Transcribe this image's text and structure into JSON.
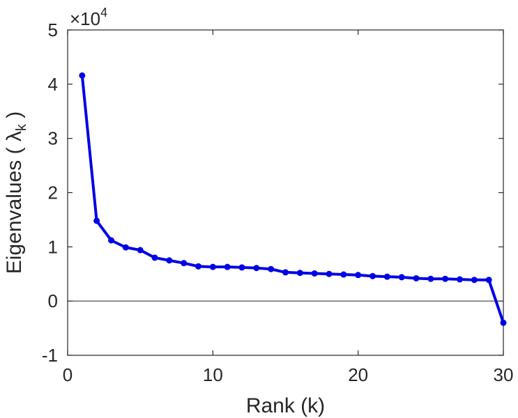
{
  "chart_data": {
    "type": "line",
    "xlabel": "Rank (k)",
    "ylabel": "Eigenvalues ( λk )",
    "ylabel_main": "Eigenvalues ( ",
    "ylabel_symbol": "λ",
    "ylabel_subscript": "k",
    "ylabel_close": " )",
    "xlim": [
      0,
      30
    ],
    "ylim": [
      -1,
      5
    ],
    "y_scale_multiplier": "×10",
    "y_scale_exponent": "4",
    "x_ticks": [
      0,
      10,
      20,
      30
    ],
    "x_tick_labels": [
      "0",
      "10",
      "20",
      "30"
    ],
    "y_ticks": [
      -1,
      0,
      1,
      2,
      3,
      4,
      5
    ],
    "y_tick_labels": [
      "-1",
      "0",
      "1",
      "2",
      "3",
      "4",
      "5"
    ],
    "grid": false,
    "zero_line": true,
    "series": [
      {
        "color": "#0000e6",
        "marker": "circle",
        "x": [
          1,
          2,
          3,
          4,
          5,
          6,
          7,
          8,
          9,
          10,
          11,
          12,
          13,
          14,
          15,
          16,
          17,
          18,
          19,
          20,
          21,
          22,
          23,
          24,
          25,
          26,
          27,
          28,
          29,
          30
        ],
        "y": [
          4.16,
          1.48,
          1.12,
          0.99,
          0.94,
          0.8,
          0.75,
          0.7,
          0.64,
          0.63,
          0.63,
          0.62,
          0.61,
          0.59,
          0.53,
          0.52,
          0.51,
          0.5,
          0.49,
          0.48,
          0.46,
          0.45,
          0.44,
          0.42,
          0.41,
          0.41,
          0.4,
          0.39,
          0.39,
          -0.4
        ]
      }
    ]
  }
}
